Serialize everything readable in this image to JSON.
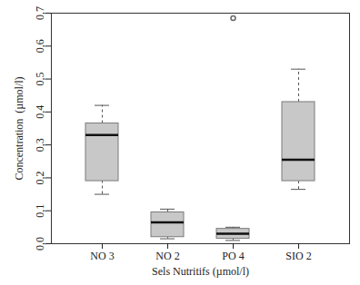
{
  "chart_data": {
    "type": "box",
    "x_label": "Sels Nutritifs (µmol/l)",
    "y_label": "Concentration  (µmol/l)",
    "categories": [
      "NO 3",
      "NO 2",
      "PO 4",
      "SIO 2"
    ],
    "min": [
      0.15,
      0.015,
      0.01,
      0.165
    ],
    "q1": [
      0.19,
      0.02,
      0.015,
      0.19
    ],
    "median": [
      0.33,
      0.065,
      0.03,
      0.255
    ],
    "q3": [
      0.365,
      0.095,
      0.045,
      0.43
    ],
    "max": [
      0.42,
      0.105,
      0.05,
      0.53
    ],
    "outliers": [
      [],
      [],
      [
        0.685
      ],
      []
    ],
    "color": "#c8c8c8",
    "marker": "circle",
    "ylim": [
      0,
      0.7
    ],
    "yticks": [
      {
        "value": 0,
        "label": "0,0"
      },
      {
        "value": 0.1,
        "label": "0,1"
      },
      {
        "value": 0.2,
        "label": "0,2"
      },
      {
        "value": 0.3,
        "label": "0,3"
      },
      {
        "value": 0.4,
        "label": "0,4"
      },
      {
        "value": 0.5,
        "label": "0,5"
      },
      {
        "value": 0.6,
        "label": "0,6"
      },
      {
        "value": 0.7,
        "label": "0,7"
      }
    ],
    "grid": false
  }
}
